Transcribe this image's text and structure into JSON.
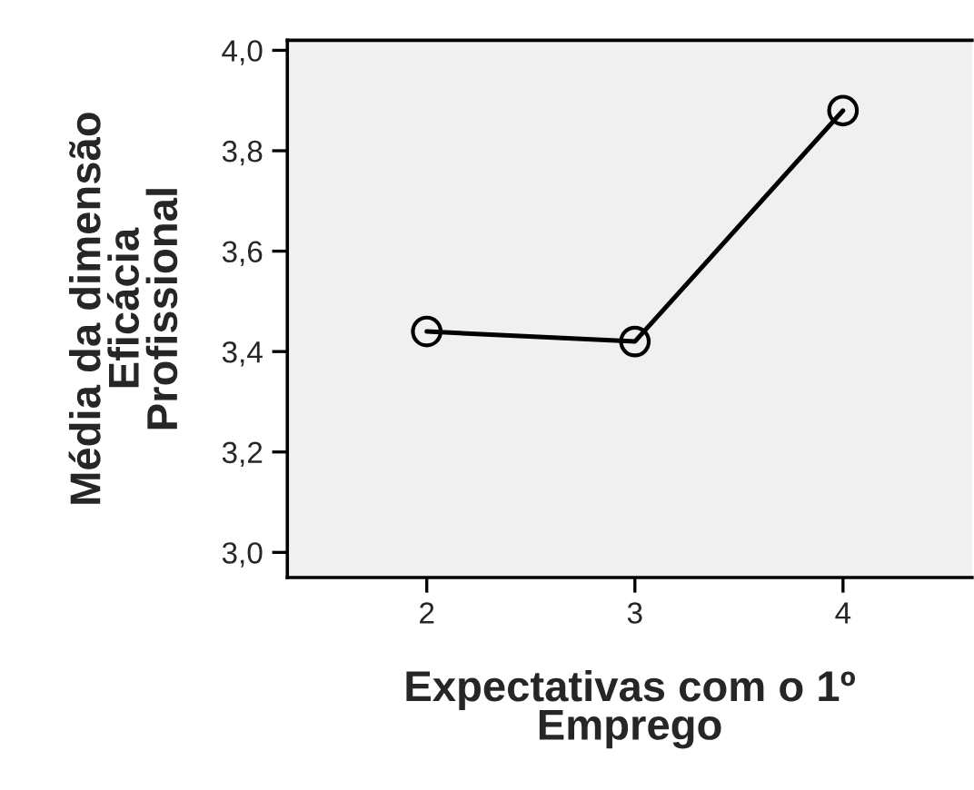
{
  "chart_data": {
    "type": "line",
    "xlabel": "Expectativas com o 1º\nEmprego",
    "ylabel": "Média da dimensão\nEficácia\nProfissional",
    "categories": [
      "2",
      "3",
      "4"
    ],
    "series": [
      {
        "color": "#000000",
        "values": [
          3.44,
          3.42,
          3.88
        ]
      }
    ],
    "ylim": [
      2.95,
      4.02
    ],
    "yticks": [
      {
        "value": 3.0,
        "label": "3,0"
      },
      {
        "value": 3.2,
        "label": "3,2"
      },
      {
        "value": 3.4,
        "label": "3,4"
      },
      {
        "value": 3.6,
        "label": "3,6"
      },
      {
        "value": 3.8,
        "label": "3,8"
      },
      {
        "value": 4.0,
        "label": "4,0"
      }
    ],
    "marker": "circle",
    "line_style": "solid",
    "grid": false
  }
}
